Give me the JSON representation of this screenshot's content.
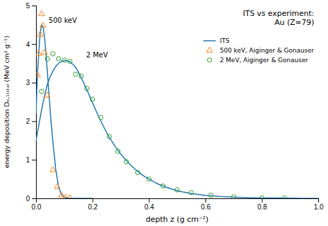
{
  "chart_data": {
    "type": "line",
    "title": "ITS vs experiment:\nAu (Z=79)",
    "xlabel": "depth z (g cm⁻²)",
    "ylabel": "energy deposition Dₑ,₁ₜₒₜₐₗ (MeV cm² g⁻¹)",
    "xlim": [
      0.0,
      1.0
    ],
    "ylim": [
      0.0,
      5.0
    ],
    "xticks": [
      {
        "value": 0.0,
        "label": "0.0"
      },
      0.2,
      0.4,
      0.6,
      0.8,
      {
        "value": 1.0,
        "label": "1.0"
      }
    ],
    "yticks": [
      0,
      1,
      2,
      3,
      4,
      5
    ],
    "grid": false,
    "legend": "upper right",
    "series": [
      {
        "name": "ITS",
        "type": "line",
        "x": [
          0.0,
          0.005,
          0.01,
          0.015,
          0.02,
          0.025,
          0.03,
          0.035,
          0.04,
          0.045,
          0.05,
          0.06,
          0.07,
          0.08,
          0.09,
          0.1,
          0.11,
          0.12,
          0.13,
          0.14,
          0.15,
          0.16,
          0.17,
          0.18,
          0.2
        ],
        "values": [
          2.2,
          3.2,
          3.8,
          4.3,
          4.5,
          4.45,
          4.2,
          3.8,
          3.3,
          2.8,
          2.3,
          1.45,
          0.75,
          0.3,
          0.1,
          0.03,
          0.008,
          0.001,
          0.0002,
          5e-05,
          1e-05,
          5e-06,
          2e-06,
          1e-06,
          0.0
        ]
      },
      {
        "name": "ITS",
        "type": "line",
        "x": [
          0.0,
          0.01,
          0.02,
          0.03,
          0.04,
          0.05,
          0.06,
          0.07,
          0.08,
          0.09,
          0.1,
          0.11,
          0.12,
          0.13,
          0.14,
          0.15,
          0.16,
          0.17,
          0.18,
          0.19,
          0.2,
          0.22,
          0.24,
          0.26,
          0.28,
          0.3,
          0.32,
          0.34,
          0.36,
          0.38,
          0.4,
          0.43,
          0.46,
          0.49,
          0.52,
          0.55,
          0.6,
          0.65,
          0.7,
          0.75,
          0.8,
          0.85,
          0.9,
          0.95,
          1.0
        ],
        "values": [
          1.5,
          1.9,
          2.3,
          2.65,
          2.95,
          3.15,
          3.3,
          3.42,
          3.5,
          3.55,
          3.57,
          3.57,
          3.54,
          3.48,
          3.4,
          3.28,
          3.14,
          2.98,
          2.82,
          2.65,
          2.48,
          2.15,
          1.85,
          1.58,
          1.35,
          1.15,
          0.98,
          0.83,
          0.7,
          0.59,
          0.5,
          0.38,
          0.29,
          0.22,
          0.165,
          0.125,
          0.075,
          0.048,
          0.03,
          0.018,
          0.011,
          0.007,
          0.004,
          0.002,
          0.001
        ]
      },
      {
        "name": "500 keV, Aiginger & Gonauser",
        "type": "scatter",
        "marker": "triangle",
        "x": [
          0.005,
          0.01,
          0.015,
          0.02,
          0.025,
          0.03,
          0.04,
          0.06,
          0.075,
          0.09,
          0.105,
          0.12
        ],
        "values": [
          3.2,
          3.75,
          4.25,
          4.78,
          4.48,
          3.78,
          2.67,
          0.73,
          0.3,
          0.08,
          0.02,
          0.005
        ]
      },
      {
        "name": "2 MeV, Aiginger & Gonauser",
        "type": "scatter",
        "marker": "circle",
        "x": [
          0.02,
          0.04,
          0.06,
          0.08,
          0.1,
          0.12,
          0.14,
          0.16,
          0.18,
          0.2,
          0.23,
          0.26,
          0.29,
          0.32,
          0.36,
          0.4,
          0.45,
          0.5,
          0.55,
          0.62,
          0.7,
          0.8,
          0.88
        ],
        "values": [
          2.77,
          3.62,
          3.75,
          3.62,
          3.58,
          3.55,
          3.22,
          3.17,
          2.85,
          2.57,
          2.1,
          1.6,
          1.22,
          0.95,
          0.67,
          0.5,
          0.32,
          0.22,
          0.15,
          0.08,
          0.038,
          0.012,
          0.005
        ]
      }
    ],
    "annotations": [
      {
        "text": "500 keV",
        "x": 0.045,
        "y": 4.56
      },
      {
        "text": "2 MeV",
        "x": 0.178,
        "y": 3.65
      }
    ]
  }
}
